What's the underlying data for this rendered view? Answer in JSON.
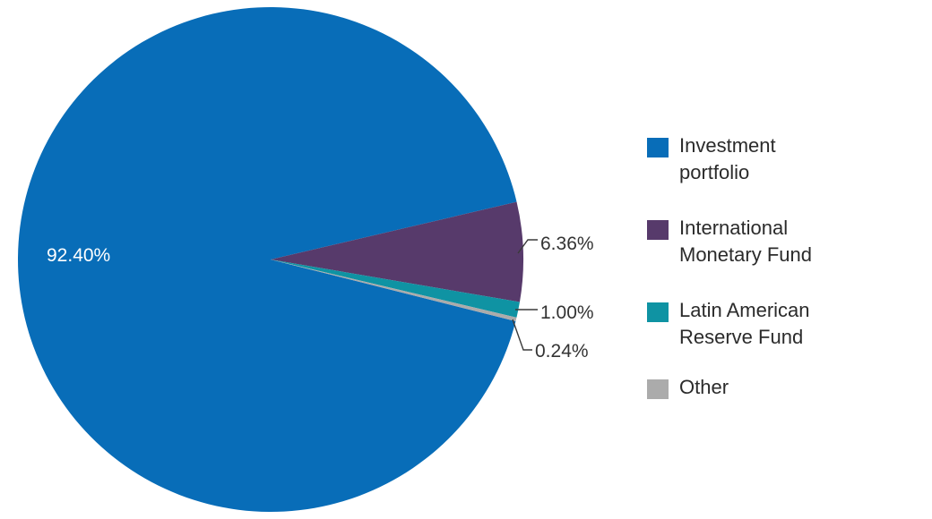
{
  "chart_data": {
    "type": "pie",
    "title": "",
    "categories": [
      "Investment portfolio",
      "International Monetary Fund",
      "Latin American Reserve Fund",
      "Other"
    ],
    "values": [
      92.4,
      6.36,
      1.0,
      0.24
    ],
    "labels": [
      "92.40%",
      "6.36%",
      "1.00%",
      "0.24%"
    ],
    "colors": [
      "#086db8",
      "#573a6b",
      "#0f93a3",
      "#ababab"
    ],
    "legend_position": "right"
  },
  "legend": {
    "items": [
      {
        "lines": [
          "Investment",
          "portfolio"
        ],
        "color": "#086db8"
      },
      {
        "lines": [
          "International",
          "Monetary Fund"
        ],
        "color": "#573a6b"
      },
      {
        "lines": [
          "Latin American",
          "Reserve Fund"
        ],
        "color": "#0f93a3"
      },
      {
        "lines": [
          "Other"
        ],
        "color": "#ababab"
      }
    ]
  }
}
